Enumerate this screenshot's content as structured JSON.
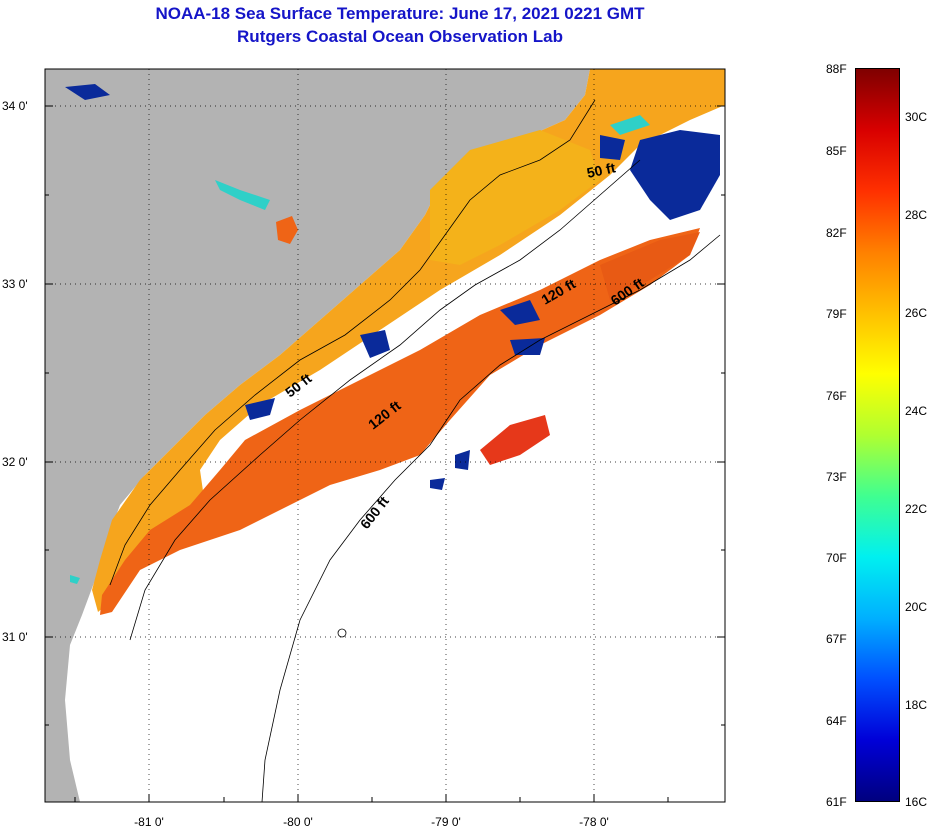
{
  "title": {
    "line1": "NOAA-18 Sea Surface Temperature:  June 17, 2021 0221 GMT",
    "line2": "Rutgers Coastal Ocean Observation Lab"
  },
  "colors": {
    "title": "#1515c8",
    "land": "#b3b3b3",
    "ocean_nodata": "#ffffff"
  },
  "map": {
    "lat_labels": [
      "34 0'",
      "33 0'",
      "32 0'",
      "31 0'"
    ],
    "lon_labels": [
      "-81 0'",
      "-80 0'",
      "-79 0'",
      "-78 0'"
    ],
    "contour_labels": [
      "50 ft",
      "120 ft",
      "600 ft",
      "50 ft",
      "120 ft",
      "600 ft"
    ]
  },
  "colorbar": {
    "fahrenheit": [
      "88F",
      "85F",
      "82F",
      "79F",
      "76F",
      "73F",
      "70F",
      "67F",
      "64F",
      "61F"
    ],
    "celsius": [
      "30C",
      "28C",
      "26C",
      "24C",
      "22C",
      "20C",
      "18C",
      "16C"
    ],
    "gradient": [
      "#00007f",
      "#0000d8",
      "#0050ff",
      "#00b0ff",
      "#00f0f0",
      "#40ff90",
      "#b0ff30",
      "#ffff00",
      "#ffc000",
      "#ff8000",
      "#ff3000",
      "#d80000",
      "#7f0000"
    ]
  }
}
